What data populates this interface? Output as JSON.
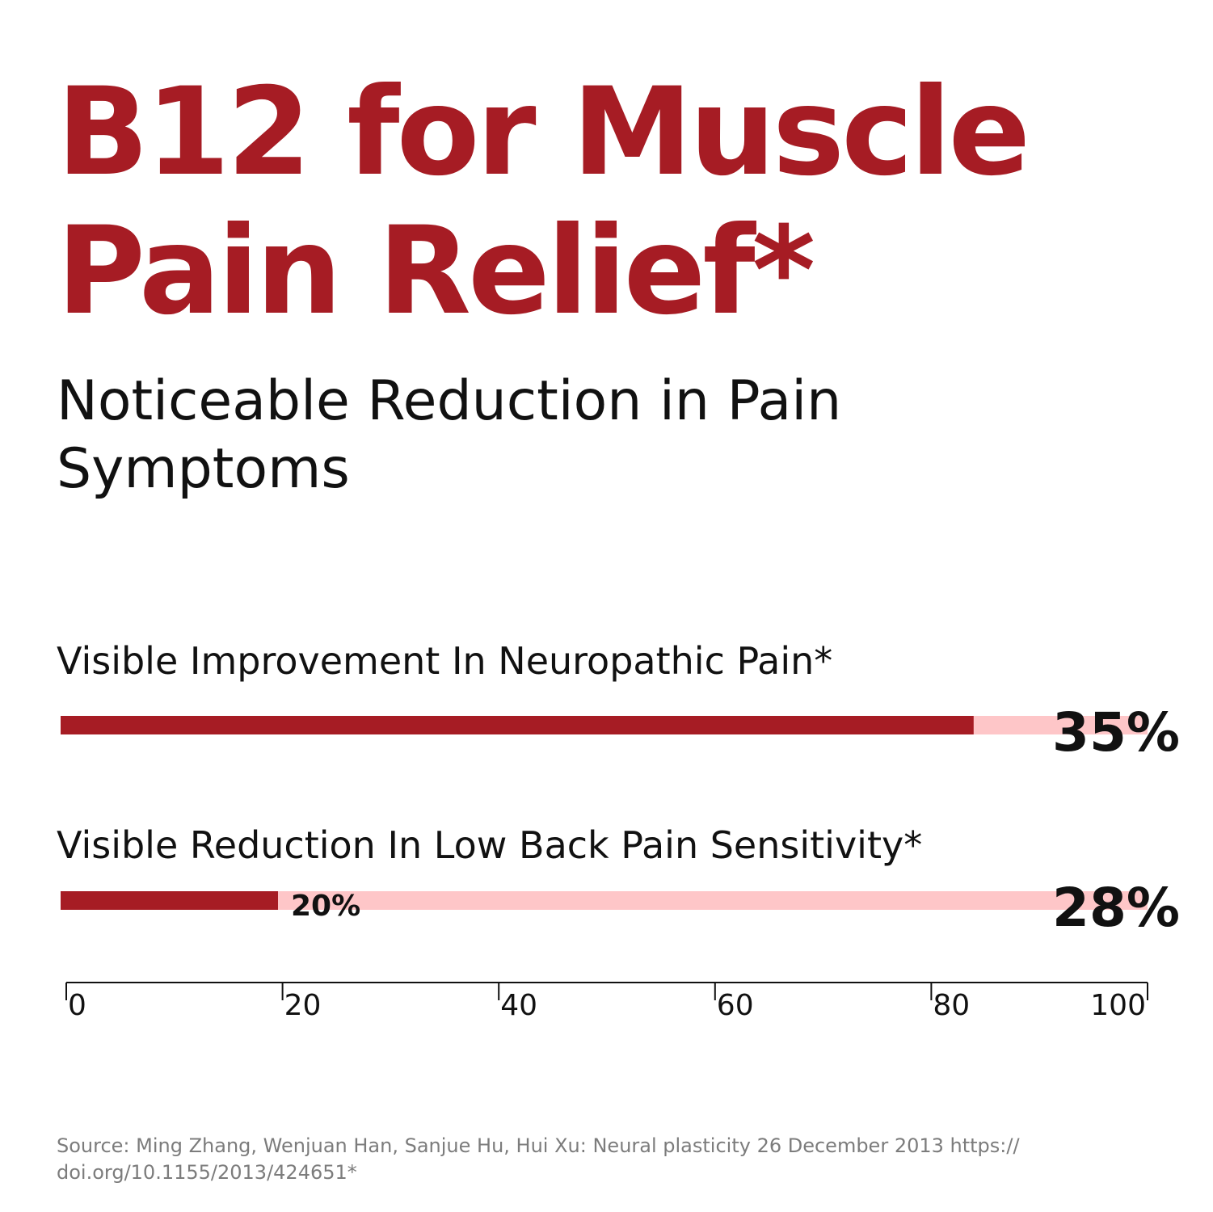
{
  "headline": {
    "line1": "B12 for Muscle",
    "line2": "Pain Relief*"
  },
  "subtitle": {
    "line1": "Noticeable Reduction in Pain",
    "line2": "Symptoms"
  },
  "colors": {
    "headline": "#a61c24",
    "bar_fill": "#a61c24",
    "bar_track": "#fec6c8",
    "text": "#111111",
    "source_text": "#7c7c7c"
  },
  "chart_data": {
    "type": "bar",
    "orientation": "horizontal",
    "xlim": [
      0,
      100
    ],
    "ticks": [
      "0",
      "20",
      "40",
      "60",
      "80",
      "100"
    ],
    "tick_values": [
      0,
      20,
      40,
      60,
      80,
      100
    ],
    "bars": [
      {
        "label": "Visible Improvement In Neuropathic Pain*",
        "value": 84,
        "value_label": "",
        "result_label": "35%"
      },
      {
        "label": "Visible Reduction In Low Back Pain Sensitivity*",
        "value": 20,
        "value_label": "20%",
        "result_label": "28%"
      }
    ]
  },
  "source": {
    "line1": "Source: Ming Zhang, Wenjuan Han, Sanjue Hu, Hui Xu: Neural plasticity 26 December 2013 https://",
    "line2": "doi.org/10.1155/2013/424651*"
  }
}
